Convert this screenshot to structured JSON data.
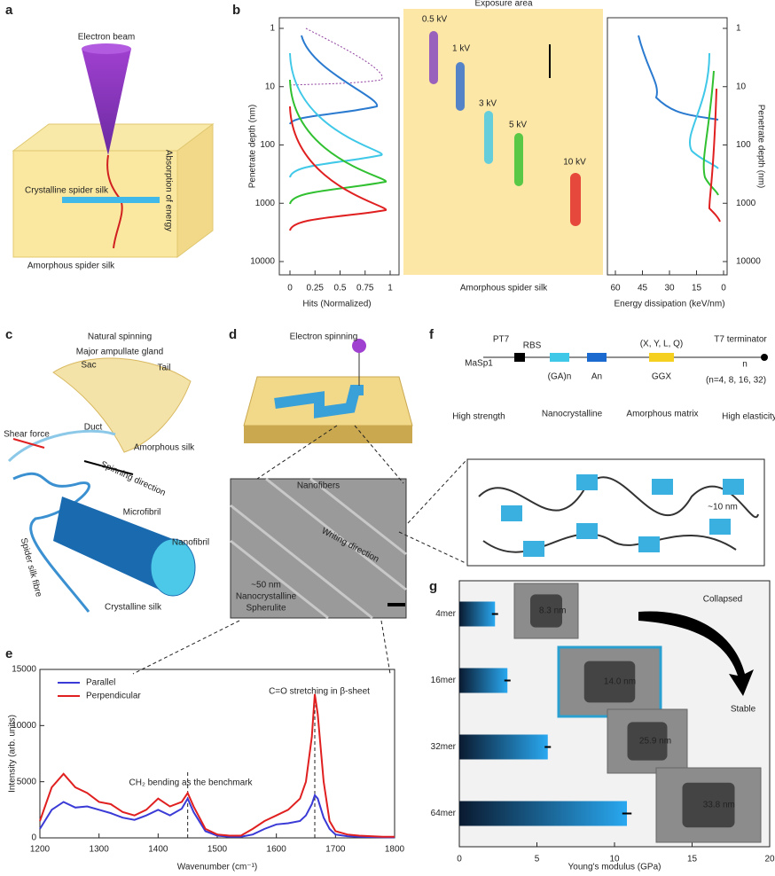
{
  "panel_labels": [
    "a",
    "b",
    "c",
    "d",
    "e",
    "f",
    "g"
  ],
  "a": {
    "texts": [
      "Electron beam",
      "Crystalline spider silk",
      "Amorphous spider silk",
      "Absorption of energy"
    ]
  },
  "b": {
    "title": "Exposure area",
    "left_ylabel": "Penetrate depth (nm)",
    "left_xlabel": "Hits (Normalized)",
    "right_xlabel": "Energy dissipation (keV/nm)",
    "right_ylabel": "Penetrate depth (nm)",
    "bottom": "Amorphous spider silk",
    "energies": [
      "0.5 kV",
      "1 kV",
      "3 kV",
      "5 kV",
      "10 kV"
    ],
    "yticks": [
      1,
      10,
      100,
      1000,
      10000
    ],
    "left_xticks": [
      0,
      0.25,
      0.5,
      0.75,
      1
    ],
    "right_xticks": [
      60,
      45,
      30,
      15,
      0
    ]
  },
  "c": {
    "texts": [
      "Natural spinning",
      "Major ampullate gland",
      "Sac",
      "Tail",
      "Duct",
      "Shear force",
      "Spinning direction",
      "Amorphous silk",
      "Microfibril",
      "Nanofibril",
      "Spider silk fibre",
      "Crystalline silk"
    ]
  },
  "d": {
    "texts": [
      "Electron spinning",
      "Nanofibers",
      "Writing direction",
      "~50 nm",
      "Nanocrystalline",
      "Spherulite"
    ]
  },
  "f": {
    "texts": [
      "MaSp1",
      "PT7",
      "RBS",
      "(GA)n",
      "An",
      "GGX",
      "(X, Y, L, Q)",
      "T7 terminator",
      "n",
      "(n=4, 8, 16, 32)",
      "High strength",
      "Nanocrystalline",
      "Amorphous matrix",
      "High elasticity",
      "~10 nm"
    ]
  },
  "chart_data": [
    {
      "type": "line",
      "xlabel": "Wavenumber (cm⁻¹)",
      "ylabel": "Intensity (arb. units)",
      "x": [
        1200,
        1220,
        1240,
        1260,
        1280,
        1300,
        1320,
        1340,
        1360,
        1380,
        1400,
        1420,
        1440,
        1450,
        1460,
        1480,
        1500,
        1520,
        1540,
        1560,
        1580,
        1600,
        1620,
        1640,
        1650,
        1660,
        1665,
        1670,
        1680,
        1690,
        1700,
        1720,
        1740,
        1760,
        1780,
        1800
      ],
      "series": [
        {
          "name": "Parallel",
          "color": "#3a3ad6",
          "values": [
            800,
            2500,
            3200,
            2700,
            2800,
            2500,
            2200,
            1800,
            1600,
            2000,
            2500,
            2000,
            2600,
            3500,
            2300,
            600,
            200,
            100,
            100,
            300,
            800,
            1200,
            1300,
            1500,
            2000,
            3000,
            3800,
            3500,
            1800,
            800,
            300,
            150,
            100,
            80,
            60,
            50
          ]
        },
        {
          "name": "Perpendicular",
          "color": "#e02020",
          "values": [
            1500,
            4500,
            5700,
            4500,
            4000,
            3200,
            3000,
            2300,
            2000,
            2500,
            3500,
            2800,
            3200,
            4000,
            2800,
            800,
            300,
            200,
            200,
            800,
            1500,
            2000,
            2500,
            3500,
            5000,
            9000,
            12800,
            11000,
            5000,
            1500,
            600,
            300,
            200,
            150,
            100,
            100
          ]
        }
      ],
      "vlines": [
        1450,
        1665
      ],
      "annotations": [
        "C=O stretching in β-sheet",
        "CH₂ bending as the benchmark"
      ],
      "xlim": [
        1200,
        1800
      ],
      "xticks": [
        1200,
        1300,
        1400,
        1500,
        1600,
        1700,
        1800
      ],
      "ylim": [
        0,
        15000
      ],
      "yticks": [
        0,
        5000,
        10000,
        15000
      ],
      "legend": "upper left"
    },
    {
      "type": "hbar",
      "xlabel": "Young's modulus (GPa)",
      "categories": [
        "4mer",
        "16mer",
        "32mer",
        "64mer"
      ],
      "label_colors": [
        "#222222",
        "#2a9fd6",
        "#222222",
        "#222222"
      ],
      "values": [
        2.3,
        3.1,
        5.7,
        10.8
      ],
      "errors": [
        0.2,
        0.2,
        0.2,
        0.3
      ],
      "color": "#1e88d8",
      "xlim": [
        0,
        20
      ],
      "xticks": [
        0,
        5,
        10,
        15,
        20
      ],
      "annotations": [
        "Collapsed",
        "Stable"
      ],
      "image_labels": [
        "8.3 nm",
        "14.0 nm",
        "25.9 nm",
        "33.8 nm"
      ]
    }
  ]
}
